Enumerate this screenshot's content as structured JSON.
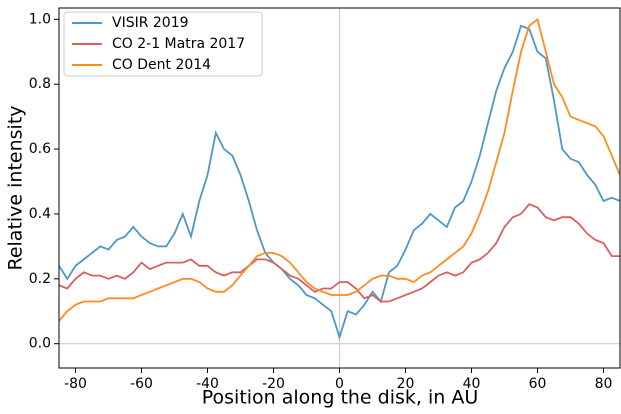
{
  "chart_data": {
    "type": "line",
    "x_label": "Position along the disk, in AU",
    "y_label": "Relative intensity",
    "x": [
      -85,
      -82.5,
      -80,
      -77.5,
      -75,
      -72.5,
      -70,
      -67.5,
      -65,
      -62.5,
      -60,
      -57.5,
      -55,
      -52.5,
      -50,
      -47.5,
      -45,
      -42.5,
      -40,
      -37.5,
      -35,
      -32.5,
      -30,
      -27.5,
      -25,
      -22.5,
      -20,
      -17.5,
      -15,
      -12.5,
      -10,
      -7.5,
      -5,
      -2.5,
      0,
      2.5,
      5,
      7.5,
      10,
      12.5,
      15,
      17.5,
      20,
      22.5,
      25,
      27.5,
      30,
      32.5,
      35,
      37.5,
      40,
      42.5,
      45,
      47.5,
      50,
      52.5,
      55,
      57.5,
      60,
      62.5,
      65,
      67.5,
      70,
      72.5,
      75,
      77.5,
      80,
      82.5,
      85
    ],
    "series": [
      {
        "name": "VISIR 2019",
        "color": "#4f97c4",
        "values": [
          0.24,
          0.2,
          0.24,
          0.26,
          0.28,
          0.3,
          0.29,
          0.32,
          0.33,
          0.36,
          0.33,
          0.31,
          0.3,
          0.3,
          0.34,
          0.4,
          0.33,
          0.44,
          0.52,
          0.65,
          0.6,
          0.58,
          0.52,
          0.44,
          0.35,
          0.28,
          0.25,
          0.23,
          0.2,
          0.18,
          0.15,
          0.14,
          0.12,
          0.1,
          0.02,
          0.1,
          0.09,
          0.12,
          0.16,
          0.13,
          0.22,
          0.24,
          0.29,
          0.35,
          0.37,
          0.4,
          0.38,
          0.36,
          0.42,
          0.44,
          0.5,
          0.58,
          0.68,
          0.78,
          0.85,
          0.9,
          0.98,
          0.97,
          0.9,
          0.88,
          0.75,
          0.6,
          0.57,
          0.56,
          0.52,
          0.49,
          0.44,
          0.45,
          0.44
        ]
      },
      {
        "name": "CO 2-1 Matra 2017",
        "color": "#d9605c",
        "values": [
          0.18,
          0.17,
          0.2,
          0.22,
          0.21,
          0.21,
          0.2,
          0.21,
          0.2,
          0.22,
          0.25,
          0.23,
          0.24,
          0.25,
          0.25,
          0.25,
          0.26,
          0.24,
          0.24,
          0.22,
          0.21,
          0.22,
          0.22,
          0.24,
          0.26,
          0.26,
          0.25,
          0.23,
          0.21,
          0.2,
          0.18,
          0.16,
          0.17,
          0.17,
          0.19,
          0.19,
          0.17,
          0.14,
          0.15,
          0.13,
          0.13,
          0.14,
          0.15,
          0.16,
          0.17,
          0.19,
          0.21,
          0.22,
          0.21,
          0.22,
          0.25,
          0.26,
          0.28,
          0.31,
          0.36,
          0.39,
          0.4,
          0.43,
          0.42,
          0.39,
          0.38,
          0.39,
          0.39,
          0.37,
          0.34,
          0.32,
          0.31,
          0.27,
          0.27
        ]
      },
      {
        "name": "CO Dent 2014",
        "color": "#ff8c1f",
        "values": [
          0.07,
          0.1,
          0.12,
          0.13,
          0.13,
          0.13,
          0.14,
          0.14,
          0.14,
          0.14,
          0.15,
          0.16,
          0.17,
          0.18,
          0.19,
          0.2,
          0.2,
          0.19,
          0.17,
          0.16,
          0.16,
          0.18,
          0.21,
          0.24,
          0.27,
          0.28,
          0.28,
          0.27,
          0.25,
          0.22,
          0.19,
          0.17,
          0.16,
          0.15,
          0.15,
          0.15,
          0.16,
          0.18,
          0.2,
          0.21,
          0.21,
          0.2,
          0.2,
          0.19,
          0.21,
          0.22,
          0.24,
          0.26,
          0.28,
          0.3,
          0.34,
          0.4,
          0.47,
          0.56,
          0.65,
          0.78,
          0.9,
          0.98,
          1.0,
          0.9,
          0.8,
          0.76,
          0.7,
          0.69,
          0.68,
          0.67,
          0.64,
          0.58,
          0.52
        ]
      }
    ],
    "xlim": [
      -85,
      85
    ],
    "ylim": [
      -0.075,
      1.035
    ],
    "xticks": [
      -80,
      -60,
      -40,
      -20,
      0,
      20,
      40,
      60,
      80
    ],
    "yticks": [
      {
        "value": 0,
        "label": "0.0"
      },
      0.2,
      0.4,
      0.6,
      0.8,
      {
        "value": 1,
        "label": "1.0"
      }
    ],
    "axhline": 0,
    "axvline": 0,
    "legend": "upper left"
  }
}
